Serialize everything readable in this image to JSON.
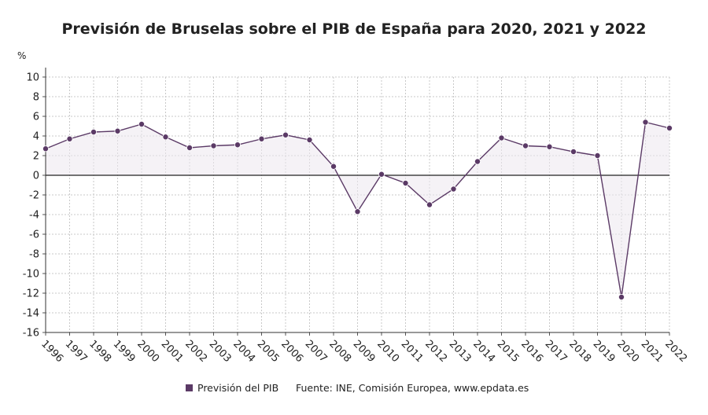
{
  "chart_data": {
    "type": "line",
    "title": "Previsión de Bruselas sobre el PIB de España para 2020, 2021 y 2022",
    "ylabel": "%",
    "xlabel": "",
    "ylim": [
      -16,
      10
    ],
    "yticks": [
      10,
      8,
      6,
      4,
      2,
      0,
      -2,
      -4,
      -6,
      -8,
      -10,
      -12,
      -14,
      -16
    ],
    "grid": true,
    "categories": [
      "1996",
      "1997",
      "1998",
      "1999",
      "2000",
      "2001",
      "2002",
      "2003",
      "2004",
      "2005",
      "2006",
      "2007",
      "2008",
      "2009",
      "2010",
      "2011",
      "2012",
      "2013",
      "2014",
      "2015",
      "2016",
      "2017",
      "2018",
      "2019",
      "2020",
      "2021",
      "2022"
    ],
    "series": [
      {
        "name": "Previsión del PIB",
        "color": "#5b3a66",
        "values": [
          2.7,
          3.7,
          4.4,
          4.5,
          5.2,
          3.9,
          2.8,
          3.0,
          3.1,
          3.7,
          4.1,
          3.6,
          0.9,
          -3.7,
          0.1,
          -0.8,
          -3.0,
          -1.4,
          1.4,
          3.8,
          3.0,
          2.9,
          2.4,
          2.0,
          -12.4,
          5.4,
          4.8
        ]
      }
    ],
    "legend": {
      "placement": "bottom",
      "source": "Fuente: INE, Comisión Europea, www.epdata.es"
    }
  }
}
